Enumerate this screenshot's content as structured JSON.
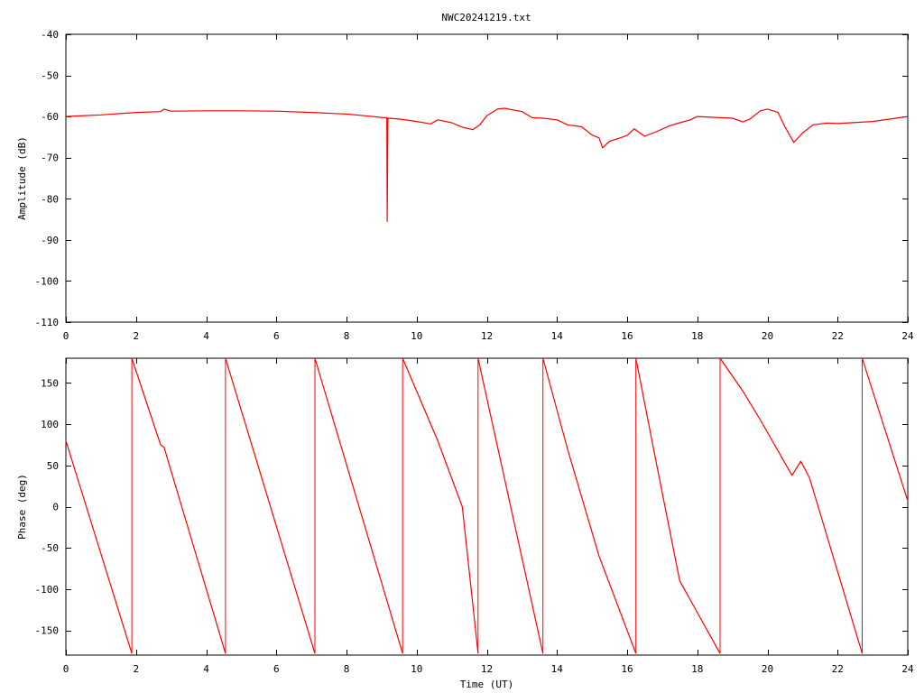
{
  "title": "NWC20241219.txt",
  "colors": {
    "series": "#ff0000",
    "axes": "#000000",
    "background": "#ffffff"
  },
  "chart_data": [
    {
      "type": "line",
      "title": "NWC20241219.txt",
      "xlabel": "",
      "ylabel": "Amplitude (dB)",
      "xlim": [
        0,
        24
      ],
      "ylim": [
        -110,
        -40
      ],
      "xticks": [
        0,
        2,
        4,
        6,
        8,
        10,
        12,
        14,
        16,
        18,
        20,
        22,
        24
      ],
      "yticks": [
        -110,
        -100,
        -90,
        -80,
        -70,
        -60,
        -50,
        -40
      ],
      "grid": false,
      "series": [
        {
          "color": "#ff0000",
          "points": [
            [
              0,
              -60
            ],
            [
              1,
              -59.6
            ],
            [
              2,
              -59
            ],
            [
              2.7,
              -58.8
            ],
            [
              2.8,
              -58.2
            ],
            [
              3,
              -58.7
            ],
            [
              4,
              -58.6
            ],
            [
              5,
              -58.6
            ],
            [
              6,
              -58.7
            ],
            [
              7,
              -59
            ],
            [
              8,
              -59.4
            ],
            [
              8.5,
              -59.8
            ],
            [
              9,
              -60.2
            ],
            [
              9.15,
              -60.3
            ],
            [
              9.16,
              -85.5
            ],
            [
              9.18,
              -60.4
            ],
            [
              9.5,
              -60.6
            ],
            [
              10,
              -61.2
            ],
            [
              10.4,
              -61.8
            ],
            [
              10.6,
              -60.8
            ],
            [
              11,
              -61.5
            ],
            [
              11.3,
              -62.6
            ],
            [
              11.6,
              -63.2
            ],
            [
              11.8,
              -62
            ],
            [
              12,
              -59.8
            ],
            [
              12.3,
              -58.2
            ],
            [
              12.5,
              -58
            ],
            [
              13,
              -58.8
            ],
            [
              13.3,
              -60.3
            ],
            [
              13.6,
              -60.4
            ],
            [
              14,
              -60.8
            ],
            [
              14.3,
              -62
            ],
            [
              14.7,
              -62.5
            ],
            [
              15,
              -64.5
            ],
            [
              15.2,
              -65.2
            ],
            [
              15.3,
              -67.6
            ],
            [
              15.5,
              -66
            ],
            [
              15.8,
              -65.2
            ],
            [
              16,
              -64.6
            ],
            [
              16.2,
              -63
            ],
            [
              16.5,
              -64.8
            ],
            [
              16.8,
              -63.8
            ],
            [
              17.2,
              -62.3
            ],
            [
              17.5,
              -61.5
            ],
            [
              17.8,
              -60.8
            ],
            [
              18,
              -60
            ],
            [
              18.5,
              -60.2
            ],
            [
              19,
              -60.4
            ],
            [
              19.3,
              -61.3
            ],
            [
              19.5,
              -60.6
            ],
            [
              19.8,
              -58.6
            ],
            [
              20,
              -58.2
            ],
            [
              20.3,
              -59
            ],
            [
              20.5,
              -62.5
            ],
            [
              20.75,
              -66.3
            ],
            [
              21,
              -64
            ],
            [
              21.3,
              -62
            ],
            [
              21.7,
              -61.6
            ],
            [
              22,
              -61.7
            ],
            [
              23,
              -61.2
            ],
            [
              24,
              -60
            ]
          ]
        }
      ]
    },
    {
      "type": "line",
      "title": "",
      "xlabel": "Time (UT)",
      "ylabel": "Phase (deg)",
      "xlim": [
        0,
        24
      ],
      "ylim": [
        -180,
        180
      ],
      "xticks": [
        0,
        2,
        4,
        6,
        8,
        10,
        12,
        14,
        16,
        18,
        20,
        22,
        24
      ],
      "yticks": [
        -150,
        -100,
        -50,
        0,
        50,
        100,
        150
      ],
      "grid": false,
      "series": [
        {
          "color": "#ff0000",
          "segments": [
            [
              [
                0,
                80
              ],
              [
                1.88,
                -178
              ]
            ],
            [
              [
                1.88,
                180
              ],
              [
                2.7,
                75
              ],
              [
                2.8,
                72
              ],
              [
                4.55,
                -178
              ]
            ],
            [
              [
                4.55,
                180
              ],
              [
                7.1,
                -178
              ]
            ],
            [
              [
                7.1,
                180
              ],
              [
                9.6,
                -178
              ]
            ],
            [
              [
                9.6,
                180
              ],
              [
                10.6,
                80
              ],
              [
                11.3,
                0
              ],
              [
                11.75,
                -178
              ]
            ],
            [
              [
                11.75,
                180
              ],
              [
                13.6,
                -178
              ]
            ],
            [
              [
                13.6,
                180
              ],
              [
                14.3,
                70
              ],
              [
                15.2,
                -60
              ],
              [
                16.25,
                -178
              ]
            ],
            [
              [
                16.25,
                180
              ],
              [
                16.8,
                60
              ],
              [
                17.5,
                -90
              ],
              [
                18.65,
                -178
              ]
            ],
            [
              [
                18.65,
                180
              ],
              [
                19.3,
                140
              ],
              [
                19.8,
                105
              ],
              [
                20.7,
                38
              ],
              [
                20.95,
                55
              ],
              [
                21.2,
                35
              ],
              [
                22.7,
                -178
              ]
            ],
            [
              [
                22.7,
                180
              ],
              [
                24,
                7
              ]
            ]
          ]
        }
      ]
    }
  ]
}
